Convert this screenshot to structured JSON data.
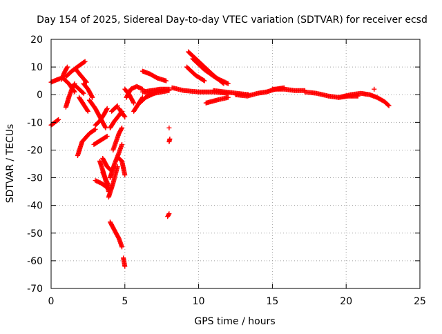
{
  "chart_data": {
    "type": "scatter",
    "title": "Day 154 of 2025, Sidereal Day-to-day VTEC variation (SDTVAR) for receiver ecsd",
    "xlabel": "GPS time / hours",
    "ylabel": "SDTVAR / TECUs",
    "xlim": [
      0,
      25
    ],
    "ylim": [
      -70,
      20
    ],
    "xticks": [
      0,
      5,
      10,
      15,
      20,
      25
    ],
    "yticks": [
      -70,
      -60,
      -50,
      -40,
      -30,
      -20,
      -10,
      0,
      10,
      20
    ],
    "grid": true,
    "marker": "+",
    "color": "#ff0000",
    "tracks": [
      {
        "x": [
          0.0,
          0.3,
          0.6
        ],
        "y": [
          4.5,
          5.2,
          5.8
        ]
      },
      {
        "x": [
          0.0,
          0.25,
          0.5
        ],
        "y": [
          -11.0,
          -10.0,
          -9.0
        ]
      },
      {
        "x": [
          0.7,
          0.9,
          1.1
        ],
        "y": [
          5.5,
          8.0,
          10.0
        ]
      },
      {
        "x": [
          0.8,
          1.2,
          1.6
        ],
        "y": [
          6.0,
          4.0,
          1.0
        ]
      },
      {
        "x": [
          1.0,
          1.4,
          1.9,
          2.3
        ],
        "y": [
          6.5,
          8.5,
          10.5,
          12.0
        ]
      },
      {
        "x": [
          1.0,
          1.2,
          1.4,
          1.6
        ],
        "y": [
          -4.5,
          -1.0,
          2.0,
          4.0
        ]
      },
      {
        "x": [
          1.6,
          1.9,
          2.2
        ],
        "y": [
          3.5,
          2.0,
          0.5
        ]
      },
      {
        "x": [
          1.7,
          2.0,
          2.4
        ],
        "y": [
          9.0,
          7.0,
          4.5
        ]
      },
      {
        "x": [
          1.8,
          2.1,
          2.6,
          3.0
        ],
        "y": [
          -22.0,
          -17.0,
          -14.0,
          -12.5
        ]
      },
      {
        "x": [
          1.9,
          2.2,
          2.5
        ],
        "y": [
          -1.0,
          -3.5,
          -6.0
        ]
      },
      {
        "x": [
          2.2,
          2.5,
          2.8
        ],
        "y": [
          4.0,
          2.0,
          -1.0
        ]
      },
      {
        "x": [
          2.6,
          3.0,
          3.4,
          3.7
        ],
        "y": [
          -2.0,
          -5.0,
          -9.0,
          -12.0
        ]
      },
      {
        "x": [
          2.9,
          3.2,
          3.5,
          3.8
        ],
        "y": [
          -18.0,
          -17.0,
          -16.0,
          -15.0
        ]
      },
      {
        "x": [
          3.0,
          3.3,
          3.6,
          3.8
        ],
        "y": [
          -11.0,
          -9.5,
          -7.0,
          -5.0
        ]
      },
      {
        "x": [
          3.0,
          3.4,
          3.8
        ],
        "y": [
          -31.0,
          -32.0,
          -33.5
        ]
      },
      {
        "x": [
          3.3,
          3.6,
          3.9
        ],
        "y": [
          -24.0,
          -29.0,
          -35.0
        ]
      },
      {
        "x": [
          3.5,
          3.7,
          3.9
        ],
        "y": [
          -28.0,
          -30.5,
          -33.0
        ]
      },
      {
        "x": [
          3.5,
          3.8,
          4.1
        ],
        "y": [
          -23.0,
          -26.0,
          -27.5
        ]
      },
      {
        "x": [
          3.9,
          4.2,
          4.5
        ],
        "y": [
          -37.0,
          -32.0,
          -26.0
        ]
      },
      {
        "x": [
          4.0,
          4.3,
          4.6,
          4.8
        ],
        "y": [
          -30.0,
          -25.0,
          -21.0,
          -18.0
        ]
      },
      {
        "x": [
          4.2,
          4.4,
          4.6,
          4.8
        ],
        "y": [
          -20.0,
          -17.0,
          -14.0,
          -12.0
        ]
      },
      {
        "x": [
          4.0,
          4.3,
          4.6,
          4.8
        ],
        "y": [
          -12.0,
          -9.5,
          -7.5,
          -6.0
        ]
      },
      {
        "x": [
          4.1,
          4.3,
          4.5
        ],
        "y": [
          -6.0,
          -5.0,
          -4.0
        ]
      },
      {
        "x": [
          4.6,
          4.8,
          5.0
        ],
        "y": [
          -5.0,
          -6.5,
          -8.0
        ]
      },
      {
        "x": [
          4.0,
          4.3,
          4.6,
          4.8
        ],
        "y": [
          -46.0,
          -49.0,
          -52.0,
          -55.0
        ]
      },
      {
        "x": [
          4.6,
          4.8,
          5.0
        ],
        "y": [
          -23.0,
          -24.0,
          -29.0
        ]
      },
      {
        "x": [
          4.9,
          5.0
        ],
        "y": [
          -59.0,
          -62.0
        ]
      },
      {
        "x": [
          5.1,
          5.4,
          5.8,
          6.2
        ],
        "y": [
          -1.0,
          2.0,
          3.0,
          2.0
        ]
      },
      {
        "x": [
          5.0,
          5.3,
          5.6
        ],
        "y": [
          2.0,
          0.0,
          -3.0
        ]
      },
      {
        "x": [
          5.6,
          5.9,
          6.2
        ],
        "y": [
          -6.0,
          -3.5,
          -1.0
        ]
      },
      {
        "x": [
          6.0,
          6.4,
          6.8,
          7.2
        ],
        "y": [
          -3.0,
          -1.0,
          0.0,
          1.0
        ]
      },
      {
        "x": [
          6.2,
          6.7,
          7.2,
          7.8
        ],
        "y": [
          8.5,
          7.5,
          6.0,
          5.0
        ]
      },
      {
        "x": [
          6.2,
          6.8,
          7.4,
          8.0
        ],
        "y": [
          1.0,
          1.5,
          2.0,
          2.0
        ]
      },
      {
        "x": [
          6.5,
          7.0,
          7.5,
          8.0
        ],
        "y": [
          0.0,
          0.5,
          1.0,
          1.5
        ]
      },
      {
        "x": [
          8.0
        ],
        "y": [
          -12.0
        ]
      },
      {
        "x": [
          8.0,
          8.05
        ],
        "y": [
          -17.0,
          -16.0
        ]
      },
      {
        "x": [
          7.9,
          8.0
        ],
        "y": [
          -44.0,
          -43.0
        ]
      },
      {
        "x": [
          8.2,
          9.0,
          10.0,
          11.0,
          12.0
        ],
        "y": [
          2.5,
          1.5,
          1.0,
          1.0,
          0.5
        ]
      },
      {
        "x": [
          9.3,
          10.2,
          11.0,
          11.7
        ],
        "y": [
          15.5,
          11.0,
          7.0,
          4.0
        ]
      },
      {
        "x": [
          9.6,
          10.4,
          11.2,
          12.0
        ],
        "y": [
          13.0,
          9.0,
          6.0,
          4.0
        ]
      },
      {
        "x": [
          9.2,
          9.8,
          10.4
        ],
        "y": [
          10.0,
          7.0,
          5.0
        ]
      },
      {
        "x": [
          10.5,
          11.2,
          12.0
        ],
        "y": [
          -3.0,
          -2.0,
          -1.0
        ]
      },
      {
        "x": [
          11.0,
          11.8,
          12.6,
          13.4
        ],
        "y": [
          1.5,
          1.0,
          0.5,
          0.0
        ]
      },
      {
        "x": [
          12.5,
          13.3,
          14.0,
          14.6,
          15.2,
          15.8
        ],
        "y": [
          0.0,
          -0.5,
          0.5,
          1.0,
          2.0,
          2.5
        ]
      },
      {
        "x": [
          15.0,
          15.8,
          16.5,
          17.2
        ],
        "y": [
          2.0,
          2.0,
          1.5,
          1.5
        ]
      },
      {
        "x": [
          17.2,
          18.0,
          18.8,
          19.5,
          20.2,
          20.8
        ],
        "y": [
          1.0,
          0.5,
          -0.5,
          -1.0,
          -0.5,
          -0.5
        ]
      },
      {
        "x": [
          19.5,
          20.3,
          21.0,
          21.6,
          22.1,
          22.6,
          22.9
        ],
        "y": [
          -1.0,
          0.0,
          0.5,
          0.0,
          -1.0,
          -2.5,
          -4.0
        ]
      },
      {
        "x": [
          21.9
        ],
        "y": [
          2.0
        ]
      }
    ]
  }
}
